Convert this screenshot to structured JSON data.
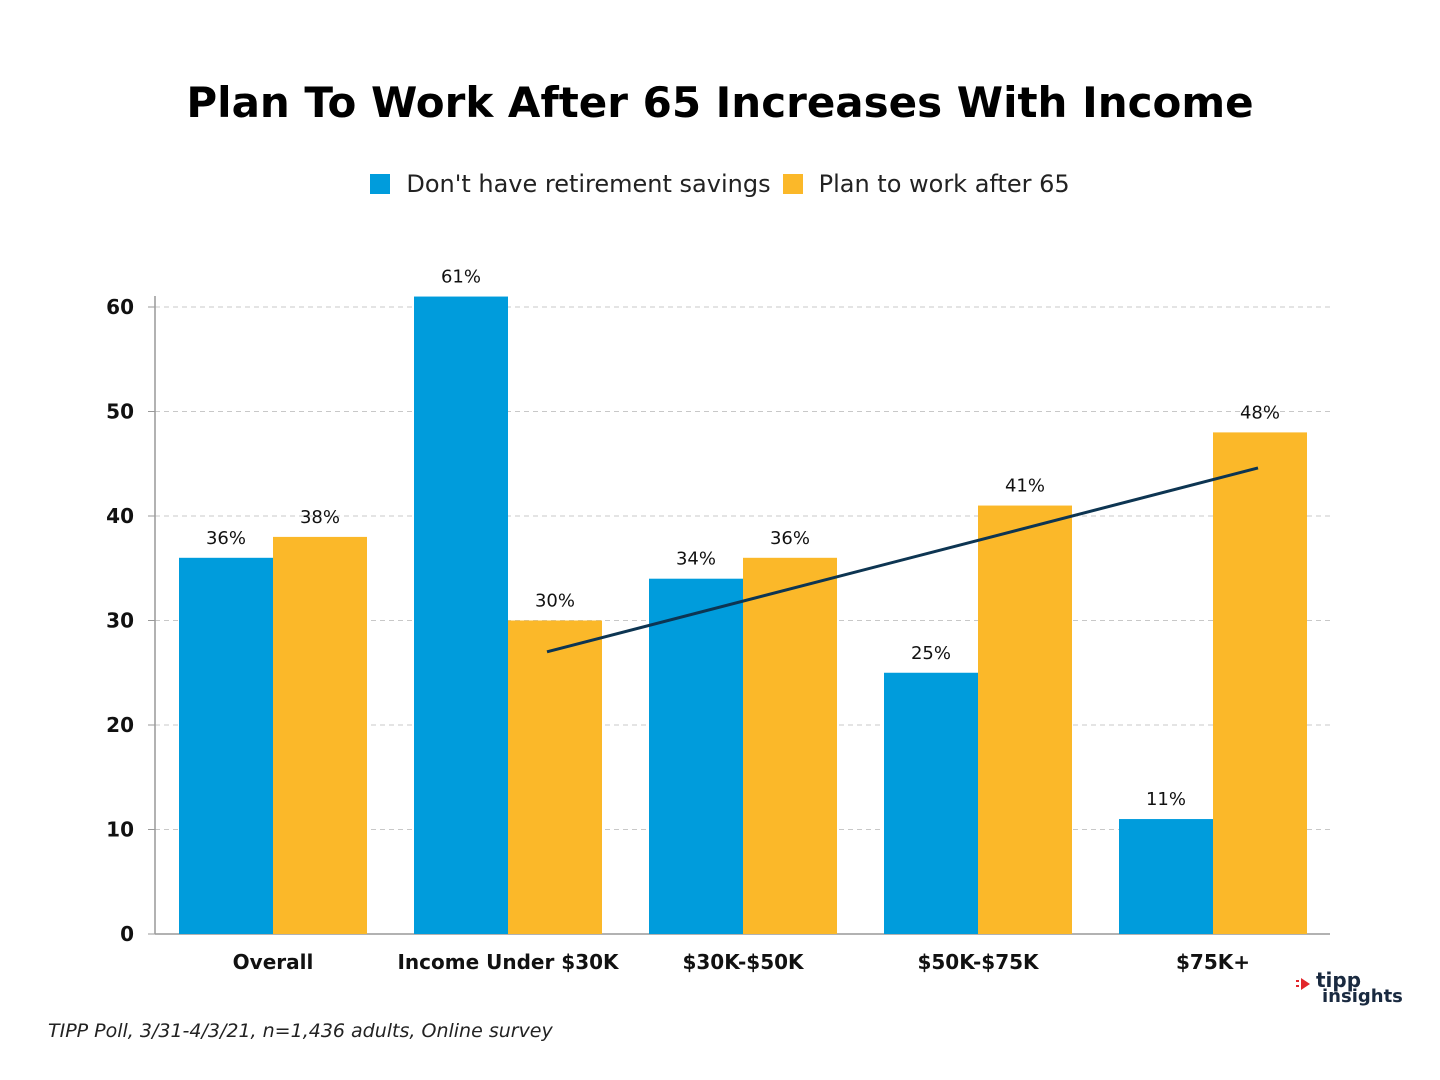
{
  "chart_data": {
    "type": "bar",
    "title": "Plan To Work After 65 Increases With Income",
    "categories": [
      "Overall",
      "Income Under $30K",
      "$30K-$50K",
      "$50K-$75K",
      "$75K+"
    ],
    "series": [
      {
        "name": "Don't have retirement savings",
        "color": "#009cdc",
        "values": [
          36,
          61,
          34,
          25,
          11
        ],
        "labels": [
          "36%",
          "61%",
          "34%",
          "25%",
          "11%"
        ]
      },
      {
        "name": "Plan to work after 65",
        "color": "#fbb829",
        "values": [
          38,
          30,
          36,
          41,
          48
        ],
        "labels": [
          "38%",
          "30%",
          "36%",
          "41%",
          "48%"
        ]
      }
    ],
    "trendline": {
      "series": "Plan to work after 65",
      "color": "#0d3552",
      "from_category": "Income Under $30K",
      "to_category": "$75K+",
      "start_value": 27,
      "end_value": 44.6
    },
    "ylim": [
      0,
      60
    ],
    "yticks": [
      0,
      10,
      20,
      30,
      40,
      50,
      60
    ],
    "grid": true,
    "legend_position": "top-center",
    "xlabel": "",
    "ylabel": ""
  },
  "footnote": "TIPP Poll, 3/31-4/3/21, n=1,436 adults, Online survey",
  "logo": {
    "line1": "tipp",
    "line2": "insights",
    "accent_color": "#e2262b",
    "text_color": "#1a2a40"
  }
}
